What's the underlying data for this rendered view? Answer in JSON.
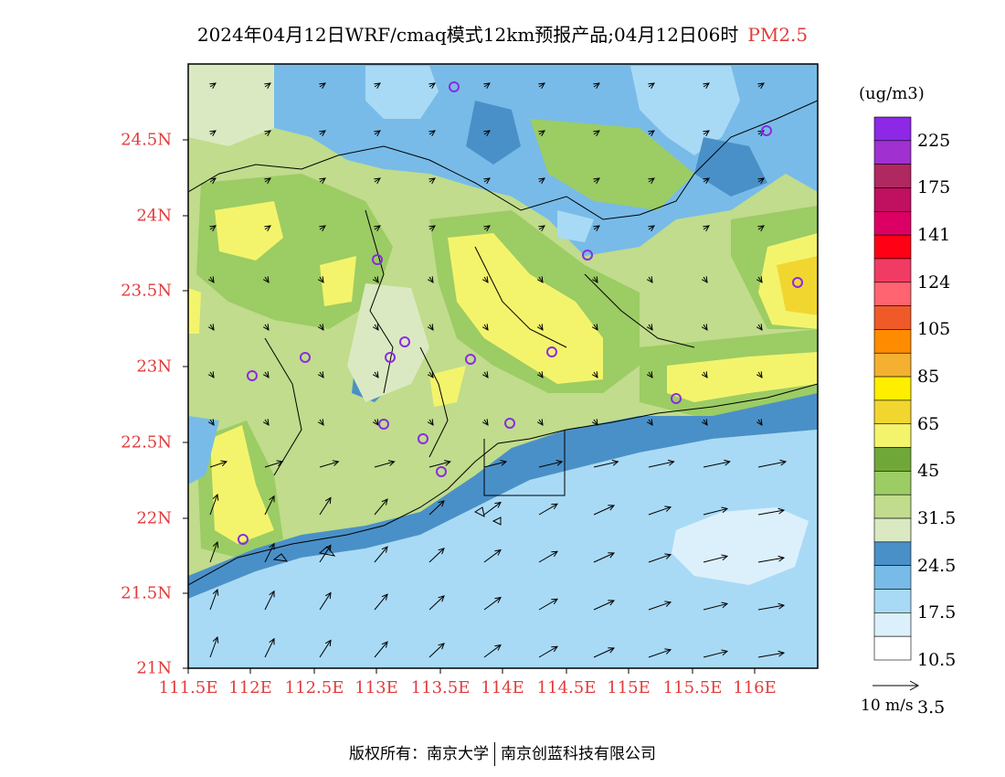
{
  "title": {
    "main": "2024年04月12日WRF/cmaq模式12km预报产品;04月12日06时",
    "species": "PM2.5"
  },
  "map": {
    "lon_labels": [
      "111.5E",
      "112E",
      "112.5E",
      "113E",
      "113.5E",
      "114E",
      "114.5E",
      "115E",
      "115.5E",
      "116E"
    ],
    "lat_labels": [
      "24.5N",
      "24N",
      "23.5N",
      "23N",
      "22.5N",
      "22N",
      "21.5N",
      "21N"
    ],
    "axis_color": "#e23b3b"
  },
  "colorbar": {
    "unit": "(ug/m3)",
    "colors": [
      "#ffffff",
      "#dcf0fc",
      "#a8daf6",
      "#78bbe8",
      "#4a90c8",
      "#dbe9c2",
      "#c0dc8c",
      "#9ccc64",
      "#6fa838",
      "#f4f46c",
      "#f2d630",
      "#ffee00",
      "#f4b030",
      "#ff8c00",
      "#f05a28",
      "#ff6470",
      "#f03c64",
      "#ff0014",
      "#dc0064",
      "#c01060",
      "#b02860",
      "#a030d0",
      "#8c28e6"
    ],
    "labels": [
      "3.5",
      "10.5",
      "17.5",
      "24.5",
      "31.5",
      "45",
      "65",
      "85",
      "105",
      "124",
      "141",
      "175",
      "225"
    ]
  },
  "wind_legend": {
    "label": "10 m/s"
  },
  "footer": {
    "left": "版权所有：南京大学",
    "right": "南京创蓝科技有限公司"
  }
}
